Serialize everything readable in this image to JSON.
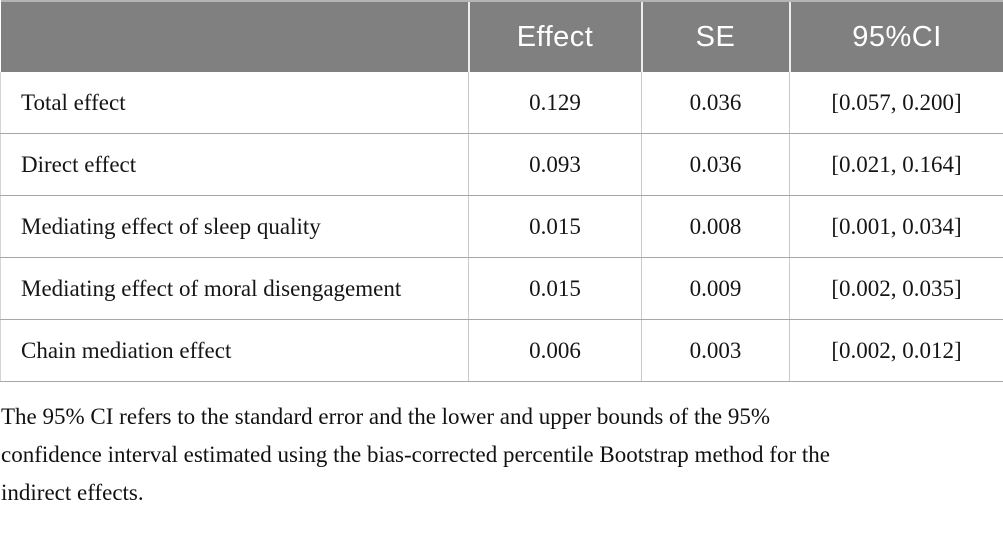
{
  "table": {
    "columns": {
      "label": "",
      "effect": "Effect",
      "se": "SE",
      "ci": "95%CI"
    },
    "rows": [
      {
        "label": "Total effect",
        "effect": "0.129",
        "se": "0.036",
        "ci": "[0.057, 0.200]"
      },
      {
        "label": "Direct effect",
        "effect": "0.093",
        "se": "0.036",
        "ci": "[0.021, 0.164]"
      },
      {
        "label": "Mediating effect of sleep quality",
        "effect": "0.015",
        "se": "0.008",
        "ci": "[0.001, 0.034]"
      },
      {
        "label": "Mediating effect of moral disengagement",
        "effect": "0.015",
        "se": "0.009",
        "ci": "[0.002, 0.035]"
      },
      {
        "label": "Chain mediation effect",
        "effect": "0.006",
        "se": "0.003",
        "ci": "[0.002, 0.012]"
      }
    ]
  },
  "footnote": {
    "lines": [
      "The 95% CI refers to the standard error and the lower and upper bounds of the 95%",
      "confidence interval estimated using the bias-corrected percentile Bootstrap method for the",
      "indirect effects."
    ]
  },
  "colors": {
    "header_bg": "#808080",
    "header_text": "#ffffff",
    "row_divider": "#a6a6a6",
    "column_divider": "#c9c9c9",
    "body_text": "#151515"
  }
}
